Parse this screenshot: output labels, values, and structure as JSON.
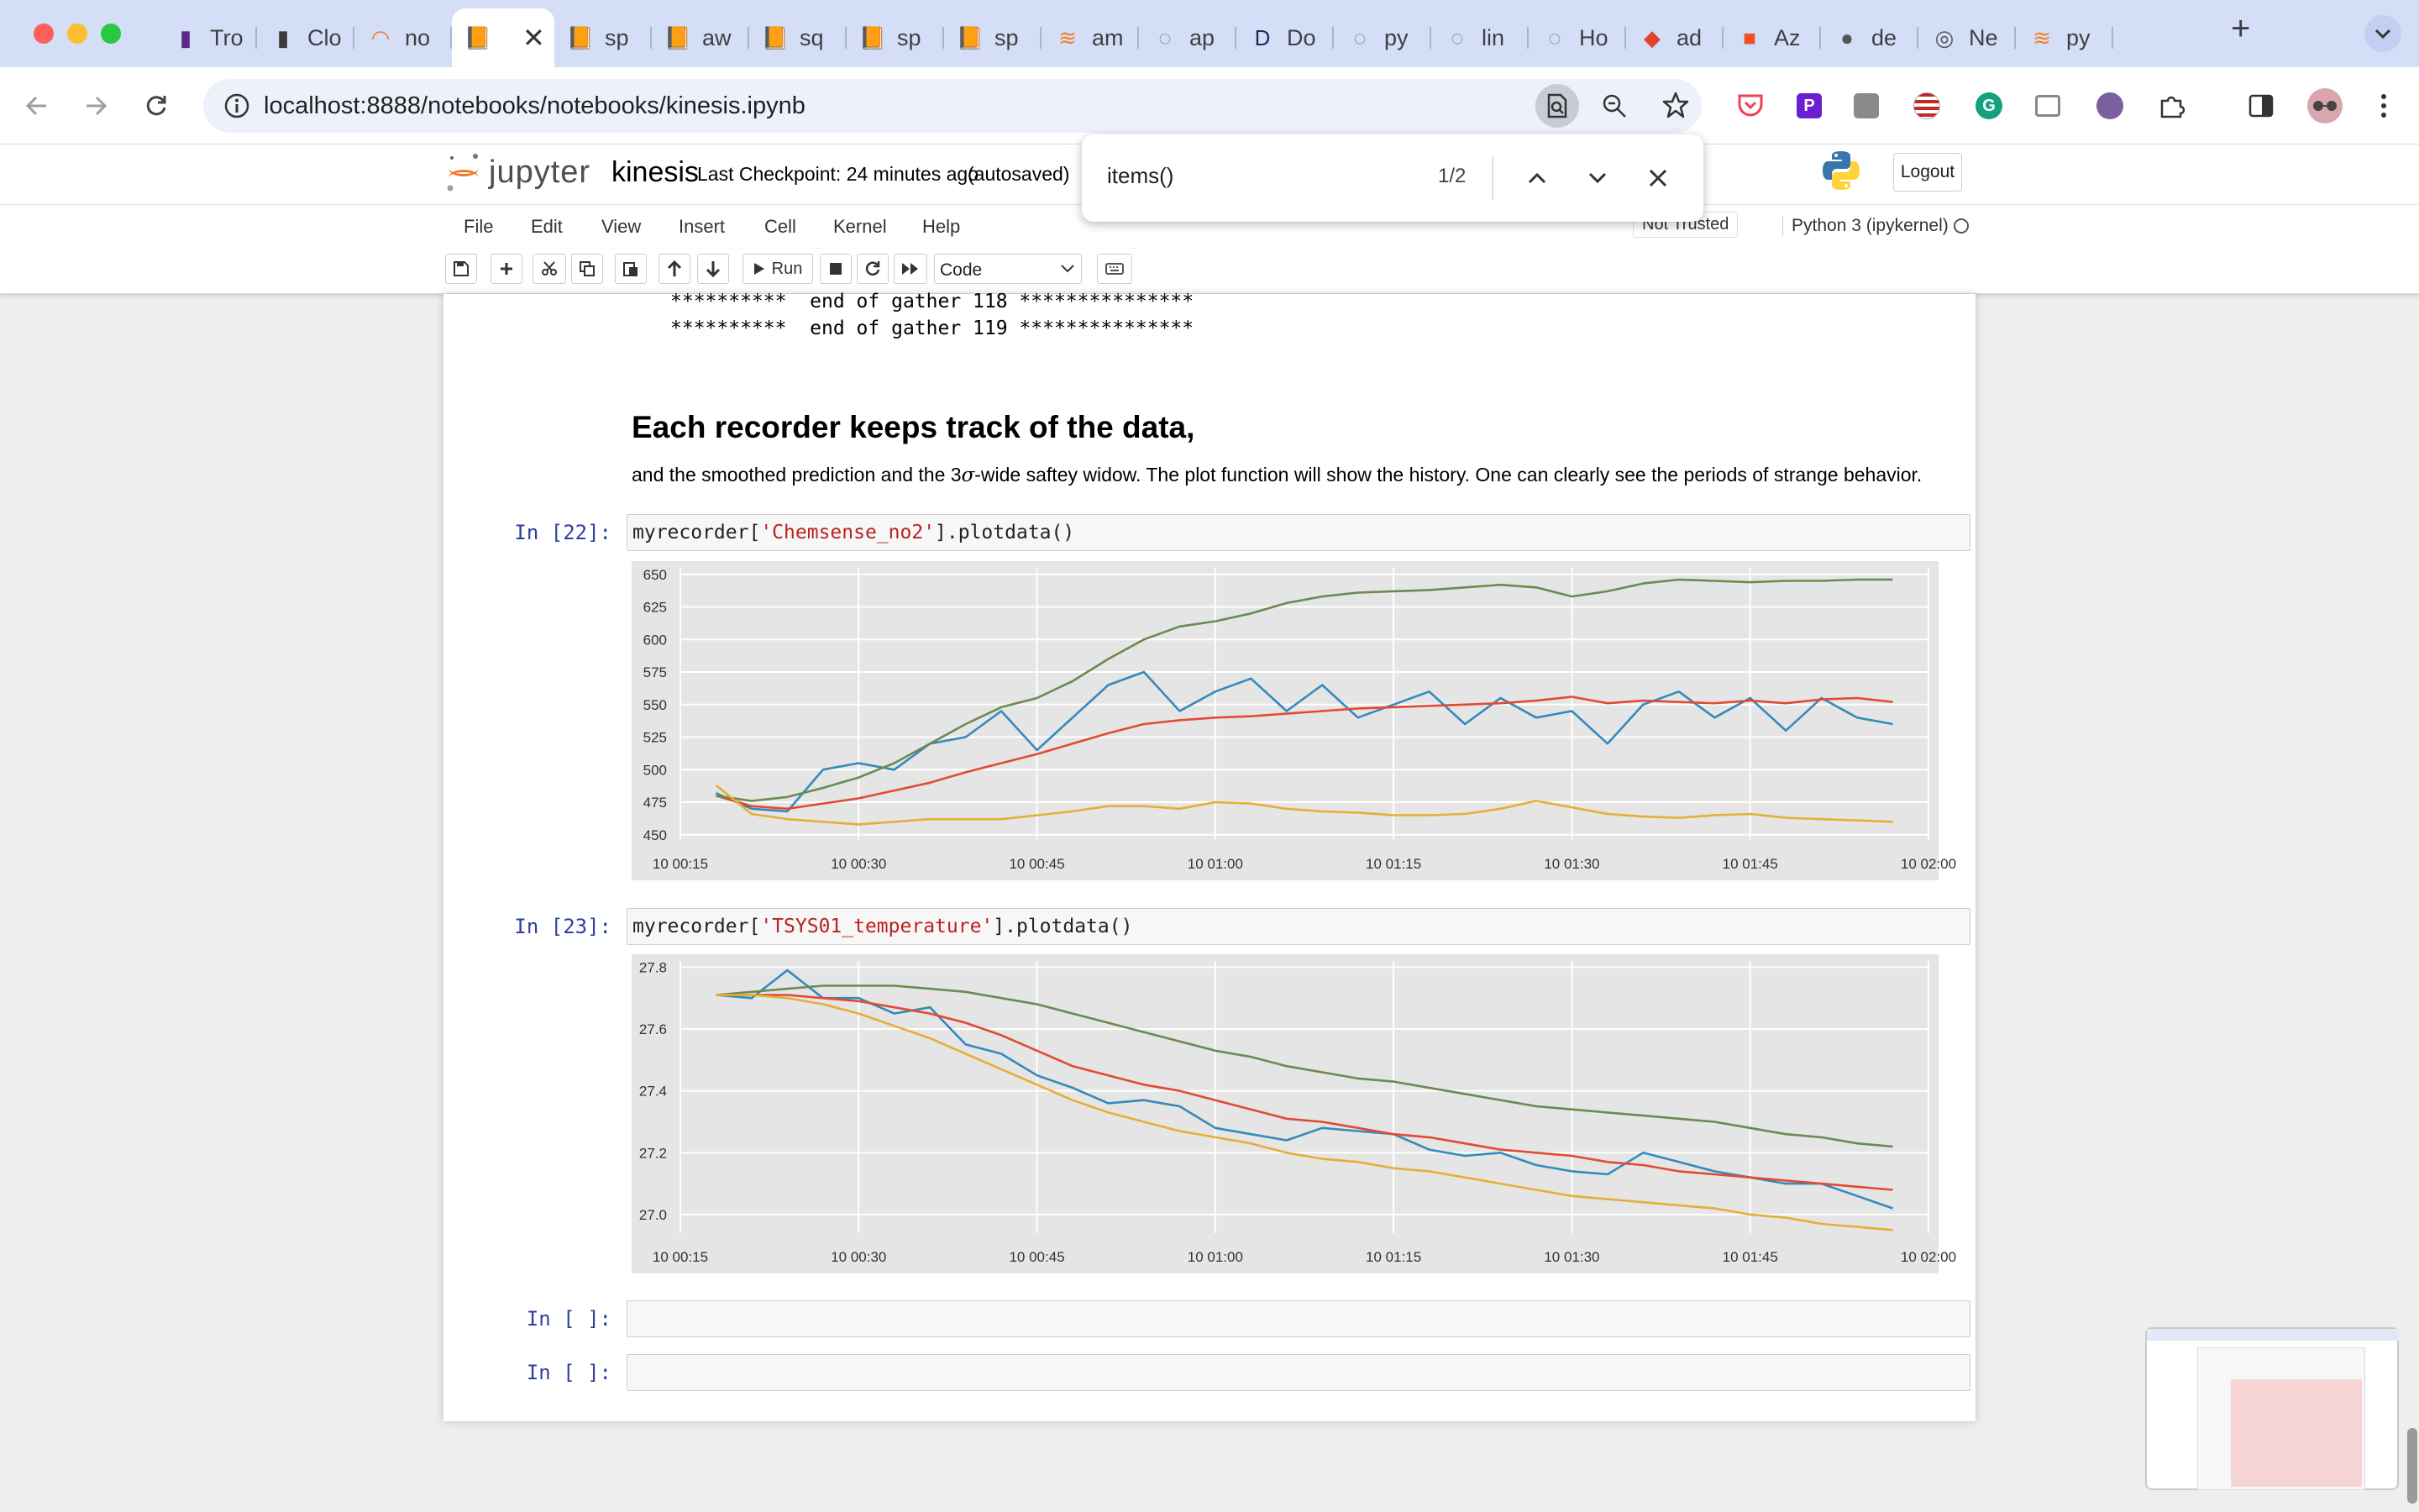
{
  "browser": {
    "tabs": [
      {
        "label": "Tro",
        "icon": "plugin-icon",
        "color": "#5b2a86"
      },
      {
        "label": "Clo",
        "icon": "plugin-icon",
        "color": "#3a3a3a"
      },
      {
        "label": "no",
        "icon": "jupyter-icon",
        "color": "#f37626"
      },
      {
        "label": "",
        "icon": "book-icon",
        "color": "#f0a04b",
        "active": true
      },
      {
        "label": "sp",
        "icon": "book-icon",
        "color": "#f0a04b"
      },
      {
        "label": "aw",
        "icon": "book-icon",
        "color": "#f0a04b"
      },
      {
        "label": "sq",
        "icon": "book-icon",
        "color": "#f0a04b"
      },
      {
        "label": "sp",
        "icon": "book-icon",
        "color": "#f0a04b"
      },
      {
        "label": "sp",
        "icon": "book-icon",
        "color": "#f0a04b"
      },
      {
        "label": "am",
        "icon": "stack-icon",
        "color": "#f48024"
      },
      {
        "label": "ap",
        "icon": "dashed-circle-icon",
        "color": "#777777"
      },
      {
        "label": "Do",
        "icon": "docs-d-icon",
        "color": "#1e2a5a"
      },
      {
        "label": "py",
        "icon": "dashed-circle-icon",
        "color": "#777777"
      },
      {
        "label": "lin",
        "icon": "dashed-circle-icon",
        "color": "#777777"
      },
      {
        "label": "Ho",
        "icon": "dashed-circle-icon",
        "color": "#777777"
      },
      {
        "label": "ad",
        "icon": "gitlab-icon",
        "color": "#e24329"
      },
      {
        "label": "Az",
        "icon": "microsoft-icon",
        "color": "#f25022"
      },
      {
        "label": "de",
        "icon": "globe-icon",
        "color": "#555555"
      },
      {
        "label": "Ne",
        "icon": "chrome-icon",
        "color": "#555555"
      },
      {
        "label": "py",
        "icon": "stack-icon",
        "color": "#f48024"
      }
    ],
    "new_tab": "+",
    "url": "localhost:8888/notebooks/notebooks/kinesis.ipynb"
  },
  "find": {
    "query": "items()",
    "count": "1/2"
  },
  "jupyter": {
    "logo_text": "jupyter",
    "notebook_name": "kinesis",
    "checkpoint": "Last Checkpoint: 24 minutes ago",
    "autosave": "(autosaved)",
    "logout": "Logout",
    "menus": [
      "File",
      "Edit",
      "View",
      "Insert",
      "Cell",
      "Kernel",
      "Help"
    ],
    "trusted": "Not Trusted",
    "kernel": "Python 3 (ipykernel)",
    "run_label": "Run",
    "cell_type": "Code"
  },
  "notebook": {
    "output_lines": [
      "**********  end of gather 118 ***************",
      "**********  end of gather 119 ***************"
    ],
    "heading": "Each recorder keeps track of the data,",
    "paragraph_pre": "and the smoothed prediction and the 3",
    "paragraph_sigma": "σ",
    "paragraph_post": "-wide saftey widow. The plot function will show the history. One can clearly see the periods of strange behavior.",
    "cells": [
      {
        "prompt": "In [22]:",
        "code_pre": "myrecorder[",
        "code_str": "'Chemsense_no2'",
        "code_post": "].plotdata()"
      },
      {
        "prompt": "In [23]:",
        "code_pre": "myrecorder[",
        "code_str": "'TSYS01_temperature'",
        "code_post": "].plotdata()"
      },
      {
        "prompt": "In [ ]:"
      },
      {
        "prompt": "In [ ]:"
      }
    ]
  },
  "chart_data": [
    {
      "type": "line",
      "title": "",
      "xlabel": "",
      "ylabel": "",
      "x_ticks": [
        "10 00:15",
        "10 00:30",
        "10 00:45",
        "10 01:00",
        "10 01:15",
        "10 01:30",
        "10 01:45",
        "10 02:00"
      ],
      "y_ticks": [
        450,
        475,
        500,
        525,
        550,
        575,
        600,
        625,
        650
      ],
      "xlim_minutes": [
        15,
        120
      ],
      "ylim": [
        446,
        655
      ],
      "grid": true,
      "x": [
        18,
        21,
        24,
        27,
        30,
        33,
        36,
        39,
        42,
        45,
        48,
        51,
        54,
        57,
        60,
        63,
        66,
        69,
        72,
        75,
        78,
        81,
        84,
        87,
        90,
        93,
        96,
        99,
        102,
        105,
        108,
        111,
        114,
        117
      ],
      "series": [
        {
          "color": "#348abd",
          "values": [
            482,
            470,
            468,
            500,
            505,
            500,
            520,
            525,
            545,
            515,
            540,
            565,
            575,
            545,
            560,
            570,
            545,
            565,
            540,
            550,
            560,
            535,
            555,
            540,
            545,
            520,
            550,
            560,
            540,
            555,
            530,
            555,
            540,
            535
          ]
        },
        {
          "color": "#e24a33",
          "values": [
            480,
            472,
            470,
            474,
            478,
            484,
            490,
            498,
            505,
            512,
            520,
            528,
            535,
            538,
            540,
            541,
            543,
            545,
            547,
            548,
            549,
            550,
            551,
            553,
            556,
            551,
            553,
            552,
            551,
            553,
            551,
            554,
            555,
            552
          ]
        },
        {
          "color": "#6a8b4f",
          "values": [
            480,
            476,
            479,
            486,
            494,
            505,
            520,
            535,
            548,
            555,
            568,
            585,
            600,
            610,
            614,
            620,
            628,
            633,
            636,
            637,
            638,
            640,
            642,
            640,
            633,
            637,
            643,
            646,
            645,
            644,
            645,
            645,
            646,
            646
          ]
        },
        {
          "color": "#e5ae38",
          "values": [
            488,
            466,
            462,
            460,
            458,
            460,
            462,
            462,
            462,
            465,
            468,
            472,
            472,
            470,
            475,
            474,
            470,
            468,
            467,
            465,
            465,
            466,
            470,
            476,
            471,
            466,
            464,
            463,
            465,
            466,
            463,
            462,
            461,
            460
          ]
        }
      ]
    },
    {
      "type": "line",
      "title": "",
      "xlabel": "",
      "ylabel": "",
      "x_ticks": [
        "10 00:15",
        "10 00:30",
        "10 00:45",
        "10 01:00",
        "10 01:15",
        "10 01:30",
        "10 01:45",
        "10 02:00"
      ],
      "y_ticks": [
        27.0,
        27.2,
        27.4,
        27.6,
        27.8
      ],
      "y_tick_labels": [
        "27.0",
        "27.2",
        "27.4",
        "27.6",
        "27.8"
      ],
      "xlim_minutes": [
        15,
        120
      ],
      "ylim": [
        26.94,
        27.82
      ],
      "grid": true,
      "x": [
        18,
        21,
        24,
        27,
        30,
        33,
        36,
        39,
        42,
        45,
        48,
        51,
        54,
        57,
        60,
        63,
        66,
        69,
        72,
        75,
        78,
        81,
        84,
        87,
        90,
        93,
        96,
        99,
        102,
        105,
        108,
        111,
        114,
        117
      ],
      "series": [
        {
          "color": "#348abd",
          "values": [
            27.71,
            27.7,
            27.79,
            27.7,
            27.7,
            27.65,
            27.67,
            27.55,
            27.52,
            27.45,
            27.41,
            27.36,
            27.37,
            27.35,
            27.28,
            27.26,
            27.24,
            27.28,
            27.27,
            27.26,
            27.21,
            27.19,
            27.2,
            27.16,
            27.14,
            27.13,
            27.2,
            27.17,
            27.14,
            27.12,
            27.1,
            27.1,
            27.06,
            27.02
          ]
        },
        {
          "color": "#e24a33",
          "values": [
            27.71,
            27.71,
            27.71,
            27.7,
            27.69,
            27.67,
            27.65,
            27.62,
            27.58,
            27.53,
            27.48,
            27.45,
            27.42,
            27.4,
            27.37,
            27.34,
            27.31,
            27.3,
            27.28,
            27.26,
            27.25,
            27.23,
            27.21,
            27.2,
            27.19,
            27.17,
            27.16,
            27.14,
            27.13,
            27.12,
            27.11,
            27.1,
            27.09,
            27.08
          ]
        },
        {
          "color": "#6a8b4f",
          "values": [
            27.71,
            27.72,
            27.73,
            27.74,
            27.74,
            27.74,
            27.73,
            27.72,
            27.7,
            27.68,
            27.65,
            27.62,
            27.59,
            27.56,
            27.53,
            27.51,
            27.48,
            27.46,
            27.44,
            27.43,
            27.41,
            27.39,
            27.37,
            27.35,
            27.34,
            27.33,
            27.32,
            27.31,
            27.3,
            27.28,
            27.26,
            27.25,
            27.23,
            27.22
          ]
        },
        {
          "color": "#e5ae38",
          "values": [
            27.71,
            27.71,
            27.7,
            27.68,
            27.65,
            27.61,
            27.57,
            27.52,
            27.47,
            27.42,
            27.37,
            27.33,
            27.3,
            27.27,
            27.25,
            27.23,
            27.2,
            27.18,
            27.17,
            27.15,
            27.14,
            27.12,
            27.1,
            27.08,
            27.06,
            27.05,
            27.04,
            27.03,
            27.02,
            27.0,
            26.99,
            26.97,
            26.96,
            26.95
          ]
        }
      ]
    }
  ]
}
